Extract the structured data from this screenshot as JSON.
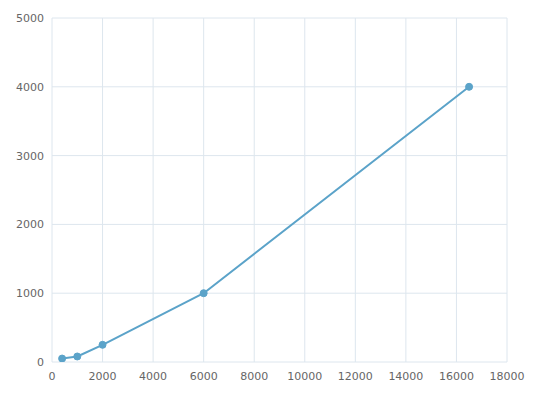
{
  "chart_data": {
    "type": "line",
    "x": [
      400,
      1000,
      2000,
      6000,
      16500
    ],
    "values": [
      50,
      80,
      250,
      1000,
      4000
    ],
    "color": "#5ba3c9",
    "marker": "circle",
    "xlim": [
      0,
      18000
    ],
    "ylim": [
      0,
      5000
    ],
    "xticks": [
      0,
      2000,
      4000,
      6000,
      8000,
      10000,
      12000,
      14000,
      16000,
      18000
    ],
    "yticks": [
      0,
      1000,
      2000,
      3000,
      4000,
      5000
    ],
    "grid": true
  }
}
